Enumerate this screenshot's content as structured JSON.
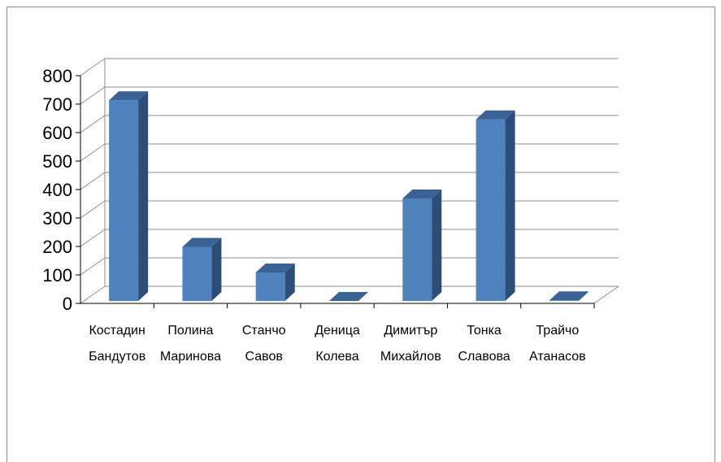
{
  "chart_data": {
    "type": "bar",
    "style": "3d-column",
    "categories": [
      [
        "Костадин",
        "Бандутов"
      ],
      [
        "Полина",
        "Маринова"
      ],
      [
        "Станчо",
        "Савов"
      ],
      [
        "Деница",
        "Колева"
      ],
      [
        "Димитър",
        "Михайлов"
      ],
      [
        "Тонка",
        "Славова"
      ],
      [
        "Трайчо",
        "Атанасов"
      ]
    ],
    "values": [
      705,
      190,
      100,
      0,
      360,
      638,
      2
    ],
    "ylim": [
      0,
      800
    ],
    "yticks": [
      "0",
      "100",
      "200",
      "300",
      "400",
      "500",
      "600",
      "700",
      "800"
    ],
    "grid": true,
    "legend": "none",
    "title": "",
    "xlabel": "",
    "ylabel": "",
    "colors": {
      "bar_front": "#4f81bd",
      "bar_side": "#2c4d75",
      "bar_top": "#3a6294",
      "grid": "#8c8c8c"
    }
  }
}
